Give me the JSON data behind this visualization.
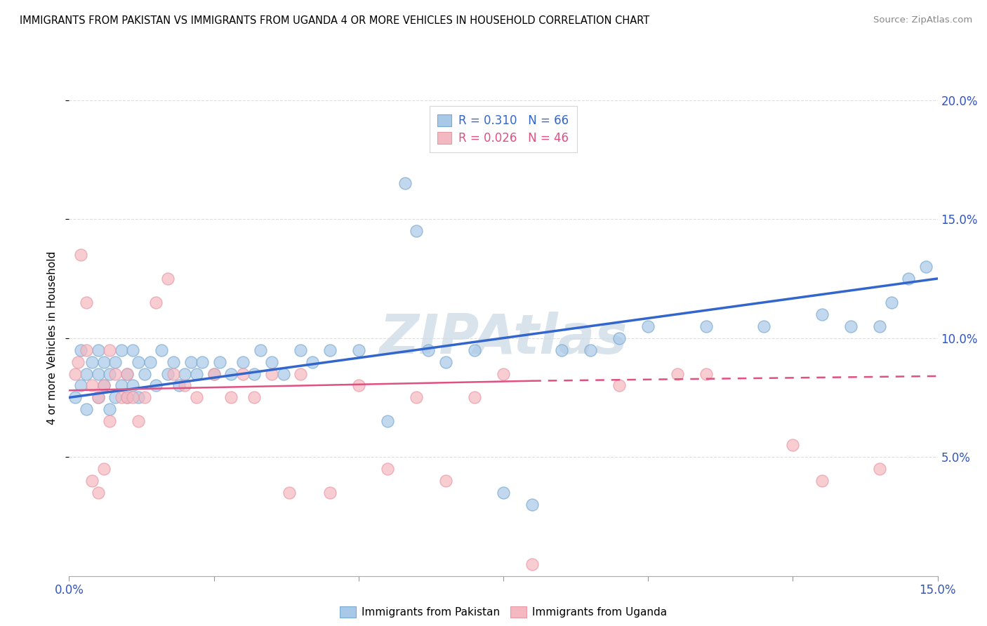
{
  "title": "IMMIGRANTS FROM PAKISTAN VS IMMIGRANTS FROM UGANDA 4 OR MORE VEHICLES IN HOUSEHOLD CORRELATION CHART",
  "source": "Source: ZipAtlas.com",
  "ylabel": "4 or more Vehicles in Household",
  "xmin": 0.0,
  "xmax": 15.0,
  "ymin": 0.0,
  "ymax": 20.0,
  "yticks": [
    5.0,
    10.0,
    15.0,
    20.0
  ],
  "xticks": [
    0.0,
    2.5,
    5.0,
    7.5,
    10.0,
    12.5,
    15.0
  ],
  "pakistan_R": 0.31,
  "pakistan_N": 66,
  "uganda_R": 0.026,
  "uganda_N": 46,
  "pakistan_color": "#a8c8e8",
  "uganda_color": "#f4b8c0",
  "pakistan_edge_color": "#7aaace",
  "uganda_edge_color": "#e899a8",
  "pakistan_line_color": "#3366cc",
  "uganda_line_color": "#e05080",
  "watermark": "ZIPAtlas",
  "pakistan_x": [
    0.1,
    0.2,
    0.2,
    0.3,
    0.3,
    0.4,
    0.5,
    0.5,
    0.5,
    0.6,
    0.6,
    0.7,
    0.7,
    0.8,
    0.8,
    0.9,
    0.9,
    1.0,
    1.0,
    1.1,
    1.1,
    1.2,
    1.2,
    1.3,
    1.4,
    1.5,
    1.6,
    1.7,
    1.8,
    1.9,
    2.0,
    2.1,
    2.2,
    2.3,
    2.5,
    2.6,
    2.8,
    3.0,
    3.2,
    3.3,
    3.5,
    3.7,
    4.0,
    4.2,
    4.5,
    5.0,
    5.5,
    5.8,
    6.0,
    6.2,
    6.5,
    7.0,
    7.5,
    8.0,
    8.5,
    9.0,
    9.5,
    10.0,
    11.0,
    12.0,
    13.0,
    13.5,
    14.0,
    14.2,
    14.5,
    14.8
  ],
  "pakistan_y": [
    7.5,
    8.0,
    9.5,
    7.0,
    8.5,
    9.0,
    7.5,
    8.5,
    9.5,
    8.0,
    9.0,
    7.0,
    8.5,
    7.5,
    9.0,
    8.0,
    9.5,
    7.5,
    8.5,
    8.0,
    9.5,
    7.5,
    9.0,
    8.5,
    9.0,
    8.0,
    9.5,
    8.5,
    9.0,
    8.0,
    8.5,
    9.0,
    8.5,
    9.0,
    8.5,
    9.0,
    8.5,
    9.0,
    8.5,
    9.5,
    9.0,
    8.5,
    9.5,
    9.0,
    9.5,
    9.5,
    6.5,
    16.5,
    14.5,
    9.5,
    9.0,
    9.5,
    3.5,
    3.0,
    9.5,
    9.5,
    10.0,
    10.5,
    10.5,
    10.5,
    11.0,
    10.5,
    10.5,
    11.5,
    12.5,
    13.0
  ],
  "uganda_x": [
    0.1,
    0.15,
    0.2,
    0.3,
    0.3,
    0.4,
    0.4,
    0.5,
    0.5,
    0.6,
    0.6,
    0.7,
    0.7,
    0.8,
    0.9,
    1.0,
    1.0,
    1.1,
    1.2,
    1.3,
    1.5,
    1.7,
    1.8,
    2.0,
    2.2,
    2.5,
    2.8,
    3.0,
    3.2,
    3.5,
    3.8,
    4.0,
    4.5,
    5.0,
    5.5,
    6.0,
    6.5,
    7.0,
    7.5,
    8.0,
    9.5,
    10.5,
    11.0,
    12.5,
    13.0,
    14.0
  ],
  "uganda_y": [
    8.5,
    9.0,
    13.5,
    11.5,
    9.5,
    4.0,
    8.0,
    3.5,
    7.5,
    4.5,
    8.0,
    9.5,
    6.5,
    8.5,
    7.5,
    7.5,
    8.5,
    7.5,
    6.5,
    7.5,
    11.5,
    12.5,
    8.5,
    8.0,
    7.5,
    8.5,
    7.5,
    8.5,
    7.5,
    8.5,
    3.5,
    8.5,
    3.5,
    8.0,
    4.5,
    7.5,
    4.0,
    7.5,
    8.5,
    0.5,
    8.0,
    8.5,
    8.5,
    5.5,
    4.0,
    4.5
  ],
  "pak_line_x0": 0.0,
  "pak_line_y0": 7.5,
  "pak_line_x1": 15.0,
  "pak_line_y1": 12.5,
  "uga_line_x0": 0.0,
  "uga_line_y0": 7.8,
  "uga_line_x1": 8.0,
  "uga_line_y1": 8.2,
  "uga_dash_x0": 8.0,
  "uga_dash_y0": 8.2,
  "uga_dash_x1": 15.0,
  "uga_dash_y1": 8.4
}
